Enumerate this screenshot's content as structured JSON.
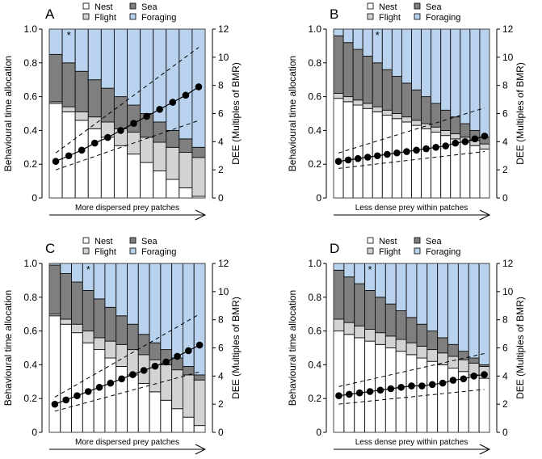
{
  "colors": {
    "nest": "#ffffff",
    "flight": "#d3d3d3",
    "sea": "#7f7f7f",
    "foraging": "#b9d3ee"
  },
  "chart_data": [
    {
      "type": "bar",
      "panel": "A",
      "stacked": true,
      "ylabel": "Behavioural time allocation",
      "ylabel_right": "DEE (Multiples of BMR)",
      "ylim": [
        0,
        1
      ],
      "ylim_right": [
        0,
        12
      ],
      "yticks": [
        "0",
        "0.2",
        "0.4",
        "0.6",
        "0.8",
        "1.0"
      ],
      "yticks_right": [
        "0",
        "2",
        "4",
        "6",
        "8",
        "10",
        "12"
      ],
      "legend": [
        "Nest",
        "Flight",
        "Sea",
        "Foraging"
      ],
      "arrow_label": "More dispersed prey patches",
      "marker": "*",
      "marker_bar": 2,
      "nest": [
        0.56,
        0.51,
        0.46,
        0.41,
        0.36,
        0.31,
        0.26,
        0.21,
        0.16,
        0.11,
        0.06,
        0.01
      ],
      "flight": [
        0.01,
        0.03,
        0.05,
        0.07,
        0.09,
        0.1,
        0.13,
        0.15,
        0.17,
        0.19,
        0.21,
        0.23
      ],
      "sea": [
        0.28,
        0.26,
        0.24,
        0.22,
        0.2,
        0.19,
        0.16,
        0.14,
        0.12,
        0.1,
        0.08,
        0.06
      ],
      "foraging": [
        0.15,
        0.2,
        0.25,
        0.3,
        0.35,
        0.4,
        0.45,
        0.5,
        0.55,
        0.6,
        0.65,
        0.7
      ],
      "dee": [
        2.6,
        3.0,
        3.4,
        3.9,
        4.3,
        4.8,
        5.3,
        5.8,
        6.3,
        6.8,
        7.3,
        7.9
      ],
      "dee_upper": [
        3.2,
        10.7
      ],
      "dee_lower": [
        2.0,
        5.5
      ]
    },
    {
      "type": "bar",
      "panel": "B",
      "stacked": true,
      "ylabel": "Behavioural time allocation",
      "ylabel_right": "DEE (Multiples of BMR)",
      "ylim": [
        0,
        1
      ],
      "ylim_right": [
        0,
        12
      ],
      "yticks": [
        "0",
        "0.2",
        "0.4",
        "0.6",
        "0.8",
        "1.0"
      ],
      "yticks_right": [
        "0",
        "2",
        "4",
        "6",
        "8",
        "10",
        "12"
      ],
      "legend": [
        "Nest",
        "Flight",
        "Sea",
        "Foraging"
      ],
      "arrow_label": "Less dense prey within patches",
      "marker": "*",
      "marker_bar": 5,
      "nest": [
        0.59,
        0.57,
        0.55,
        0.53,
        0.51,
        0.49,
        0.47,
        0.45,
        0.43,
        0.41,
        0.39,
        0.37,
        0.35,
        0.33,
        0.31,
        0.29
      ],
      "flight": [
        0.03,
        0.03,
        0.03,
        0.03,
        0.03,
        0.03,
        0.03,
        0.03,
        0.03,
        0.03,
        0.03,
        0.03,
        0.03,
        0.03,
        0.03,
        0.03
      ],
      "sea": [
        0.34,
        0.32,
        0.3,
        0.28,
        0.26,
        0.24,
        0.22,
        0.2,
        0.18,
        0.16,
        0.14,
        0.12,
        0.1,
        0.08,
        0.06,
        0.04
      ],
      "foraging": [
        0.04,
        0.08,
        0.12,
        0.16,
        0.2,
        0.24,
        0.28,
        0.32,
        0.36,
        0.4,
        0.44,
        0.48,
        0.52,
        0.56,
        0.6,
        0.64
      ],
      "dee": [
        2.6,
        2.7,
        2.8,
        2.9,
        3.0,
        3.1,
        3.2,
        3.3,
        3.4,
        3.5,
        3.6,
        3.7,
        3.9,
        4.0,
        4.2,
        4.4
      ],
      "dee_upper": [
        3.2,
        6.4
      ],
      "dee_lower": [
        2.1,
        3.3
      ]
    },
    {
      "type": "bar",
      "panel": "C",
      "stacked": true,
      "ylabel": "Behavioural time allocation",
      "ylabel_right": "DEE (Multiples of BMR)",
      "ylim": [
        0,
        1
      ],
      "ylim_right": [
        0,
        12
      ],
      "yticks": [
        "0",
        "0.2",
        "0.4",
        "0.6",
        "0.8",
        "1.0"
      ],
      "yticks_right": [
        "0",
        "2",
        "4",
        "6",
        "8",
        "10",
        "12"
      ],
      "legend": [
        "Nest",
        "Flight",
        "Sea",
        "Foraging"
      ],
      "arrow_label": "More dispersed prey patches",
      "marker": "*",
      "marker_bar": 4,
      "nest": [
        0.69,
        0.64,
        0.59,
        0.53,
        0.49,
        0.44,
        0.39,
        0.34,
        0.29,
        0.24,
        0.19,
        0.14,
        0.09,
        0.04
      ],
      "flight": [
        0.01,
        0.03,
        0.05,
        0.07,
        0.07,
        0.1,
        0.13,
        0.15,
        0.17,
        0.19,
        0.21,
        0.23,
        0.25,
        0.27
      ],
      "sea": [
        0.29,
        0.27,
        0.25,
        0.24,
        0.23,
        0.2,
        0.17,
        0.15,
        0.12,
        0.1,
        0.09,
        0.07,
        0.05,
        0.03
      ],
      "foraging": [
        0.01,
        0.06,
        0.11,
        0.16,
        0.21,
        0.26,
        0.31,
        0.36,
        0.42,
        0.47,
        0.51,
        0.56,
        0.61,
        0.66
      ],
      "dee": [
        2.0,
        2.3,
        2.6,
        2.9,
        3.2,
        3.5,
        3.8,
        4.1,
        4.4,
        4.7,
        5.0,
        5.4,
        5.8,
        6.2
      ],
      "dee_upper": [
        2.5,
        8.4
      ],
      "dee_lower": [
        1.5,
        4.3
      ]
    },
    {
      "type": "bar",
      "panel": "D",
      "stacked": true,
      "ylabel": "Behavioural time allocation",
      "ylabel_right": "DEE (Multiples of BMR)",
      "ylim": [
        0,
        1
      ],
      "ylim_right": [
        0,
        12
      ],
      "yticks": [
        "0",
        "0.2",
        "0.4",
        "0.6",
        "0.8",
        "1.0"
      ],
      "yticks_right": [
        "0",
        "2",
        "4",
        "6",
        "8",
        "10",
        "12"
      ],
      "legend": [
        "Nest",
        "Flight",
        "Sea",
        "Foraging"
      ],
      "arrow_label": "Less dense prey within patches",
      "marker": "*",
      "marker_bar": 4,
      "nest": [
        0.6,
        0.58,
        0.56,
        0.54,
        0.52,
        0.5,
        0.48,
        0.46,
        0.44,
        0.42,
        0.4,
        0.38,
        0.36,
        0.34,
        0.32
      ],
      "flight": [
        0.07,
        0.07,
        0.07,
        0.07,
        0.07,
        0.07,
        0.07,
        0.07,
        0.07,
        0.07,
        0.07,
        0.07,
        0.07,
        0.07,
        0.07
      ],
      "sea": [
        0.29,
        0.27,
        0.25,
        0.23,
        0.21,
        0.19,
        0.17,
        0.15,
        0.13,
        0.11,
        0.09,
        0.07,
        0.05,
        0.03,
        0.01
      ],
      "foraging": [
        0.04,
        0.08,
        0.12,
        0.16,
        0.2,
        0.24,
        0.28,
        0.32,
        0.36,
        0.4,
        0.44,
        0.48,
        0.52,
        0.56,
        0.6
      ],
      "dee": [
        2.6,
        2.7,
        2.8,
        2.9,
        3.0,
        3.1,
        3.2,
        3.3,
        3.3,
        3.4,
        3.5,
        3.7,
        3.8,
        4.0,
        4.1
      ],
      "dee_upper": [
        3.25,
        5.6
      ],
      "dee_lower": [
        2.0,
        3.05
      ]
    }
  ]
}
